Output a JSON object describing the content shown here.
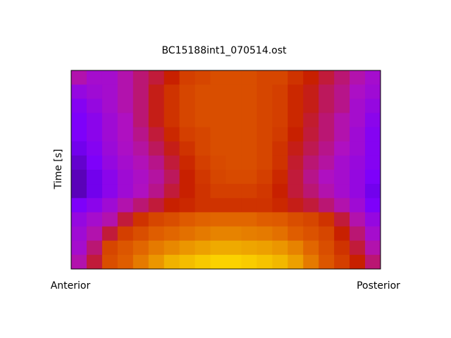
{
  "chart_data": {
    "type": "heatmap",
    "title": "BC15188int1_070514.ost",
    "ylabel": "Time [s]",
    "xlabels": [
      "Anterior",
      "Posterior"
    ],
    "zlim": [
      0,
      100
    ],
    "colormap": [
      "#2a0650",
      "#7a00ff",
      "#b010c0",
      "#c82000",
      "#e06000",
      "#f0b000",
      "#ffe000"
    ],
    "values": [
      [
        35,
        30,
        30,
        35,
        40,
        45,
        50,
        58,
        60,
        62,
        62,
        62,
        60,
        60,
        55,
        50,
        45,
        40,
        35,
        30
      ],
      [
        25,
        28,
        30,
        35,
        40,
        48,
        55,
        60,
        62,
        62,
        62,
        62,
        60,
        58,
        52,
        48,
        42,
        38,
        32,
        28
      ],
      [
        20,
        25,
        30,
        35,
        40,
        48,
        55,
        60,
        62,
        62,
        62,
        62,
        60,
        58,
        52,
        48,
        42,
        38,
        30,
        25
      ],
      [
        18,
        22,
        28,
        33,
        40,
        48,
        55,
        60,
        62,
        62,
        62,
        62,
        60,
        58,
        52,
        46,
        40,
        35,
        30,
        22
      ],
      [
        18,
        22,
        28,
        33,
        38,
        45,
        52,
        58,
        60,
        62,
        62,
        62,
        60,
        57,
        50,
        45,
        40,
        35,
        28,
        20
      ],
      [
        15,
        20,
        27,
        32,
        36,
        42,
        48,
        55,
        60,
        62,
        62,
        62,
        60,
        55,
        48,
        43,
        38,
        33,
        28,
        20
      ],
      [
        12,
        18,
        25,
        30,
        34,
        38,
        45,
        52,
        58,
        61,
        62,
        62,
        60,
        55,
        46,
        40,
        36,
        30,
        26,
        20
      ],
      [
        10,
        15,
        22,
        28,
        32,
        36,
        42,
        50,
        56,
        60,
        61,
        61,
        58,
        52,
        45,
        38,
        33,
        30,
        25,
        18
      ],
      [
        10,
        15,
        22,
        28,
        33,
        38,
        45,
        50,
        55,
        58,
        58,
        58,
        56,
        50,
        45,
        40,
        35,
        30,
        25,
        15
      ],
      [
        18,
        22,
        28,
        35,
        40,
        45,
        50,
        52,
        55,
        55,
        55,
        55,
        55,
        52,
        48,
        45,
        40,
        35,
        28,
        18
      ],
      [
        25,
        30,
        35,
        45,
        55,
        60,
        62,
        65,
        67,
        68,
        68,
        68,
        66,
        65,
        62,
        60,
        55,
        45,
        35,
        25
      ],
      [
        28,
        35,
        45,
        58,
        62,
        66,
        68,
        70,
        72,
        74,
        74,
        73,
        72,
        70,
        66,
        63,
        60,
        50,
        40,
        30
      ],
      [
        30,
        40,
        60,
        64,
        68,
        72,
        75,
        78,
        80,
        82,
        82,
        81,
        80,
        78,
        74,
        68,
        62,
        55,
        45,
        35
      ],
      [
        35,
        45,
        62,
        66,
        72,
        78,
        84,
        88,
        92,
        95,
        95,
        93,
        90,
        86,
        80,
        72,
        64,
        58,
        50,
        40
      ]
    ]
  }
}
